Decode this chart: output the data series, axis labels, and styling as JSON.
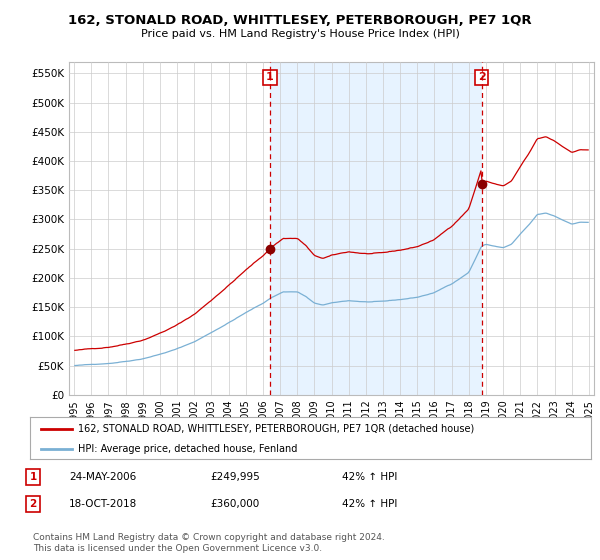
{
  "title": "162, STONALD ROAD, WHITTLESEY, PETERBOROUGH, PE7 1QR",
  "subtitle": "Price paid vs. HM Land Registry's House Price Index (HPI)",
  "legend_line1": "162, STONALD ROAD, WHITTLESEY, PETERBOROUGH, PE7 1QR (detached house)",
  "legend_line2": "HPI: Average price, detached house, Fenland",
  "transaction1_date": "24-MAY-2006",
  "transaction1_price": "£249,995",
  "transaction1_hpi": "42% ↑ HPI",
  "transaction2_date": "18-OCT-2018",
  "transaction2_price": "£360,000",
  "transaction2_hpi": "42% ↑ HPI",
  "footer": "Contains HM Land Registry data © Crown copyright and database right 2024.\nThis data is licensed under the Open Government Licence v3.0.",
  "red_color": "#cc0000",
  "blue_color": "#7ab0d4",
  "shade_color": "#ddeeff",
  "vline_color": "#cc0000",
  "grid_color": "#cccccc",
  "bg_color": "#ffffff",
  "year_t1": 2006.4167,
  "year_t2": 2018.75,
  "price_t1": 249995,
  "price_t2": 360000
}
